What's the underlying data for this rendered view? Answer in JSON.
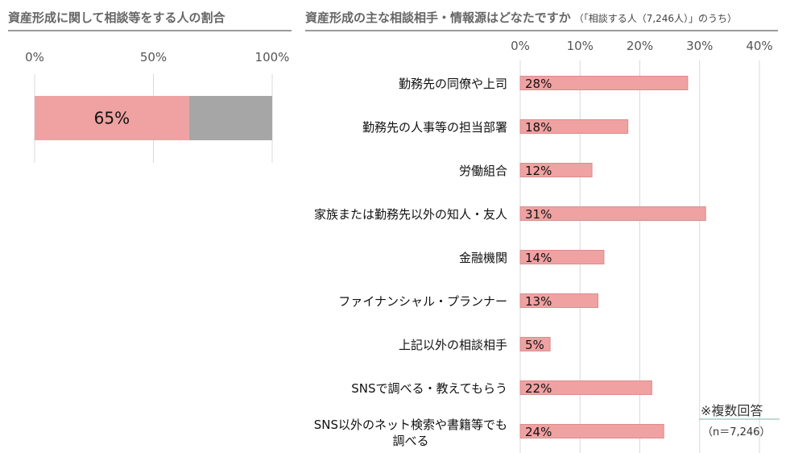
{
  "colors": {
    "bar": "#f0a1a1",
    "bar_stroke": "#d98e8e",
    "rest": "#a6a6a6",
    "grid": "#d9d9d9",
    "rule": "#9a9a9a",
    "note_line": "#7fb3b3"
  },
  "chart_data": [
    {
      "type": "bar",
      "orientation": "horizontal",
      "stacked": true,
      "title": "資産形成に関して相談等をする人の割合",
      "xlim": [
        0,
        100
      ],
      "ticks": [
        "0%",
        "50%",
        "100%"
      ],
      "value": 65,
      "value_label": "65%",
      "grid": true
    },
    {
      "type": "bar",
      "orientation": "horizontal",
      "title": "資産形成の主な相談相手・情報源はどなたですか",
      "subtitle": "（「相談する人（7,246人）」のうち）",
      "xlim": [
        0,
        40
      ],
      "ticks": [
        "0%",
        "10%",
        "20%",
        "30%",
        "40%"
      ],
      "grid": true,
      "categories": [
        [
          "勤務先の同僚や上司"
        ],
        [
          "勤務先の人事等の担当部署"
        ],
        [
          "労働組合"
        ],
        [
          "家族または勤務先以外の知人・友人"
        ],
        [
          "金融機関"
        ],
        [
          "ファイナンシャル・プランナー"
        ],
        [
          "上記以外の相談相手"
        ],
        [
          "SNSで調べる・教えてもらう"
        ],
        [
          "SNS以外のネット検索や書籍等でも",
          "調べる"
        ]
      ],
      "values": [
        28,
        18,
        12,
        31,
        14,
        13,
        5,
        22,
        24
      ],
      "value_labels": [
        "28%",
        "18%",
        "12%",
        "31%",
        "14%",
        "13%",
        "5%",
        "22%",
        "24%"
      ]
    }
  ],
  "notes": {
    "multiple_answers": "※複数回答",
    "sample_size": "（n＝7,246）"
  }
}
